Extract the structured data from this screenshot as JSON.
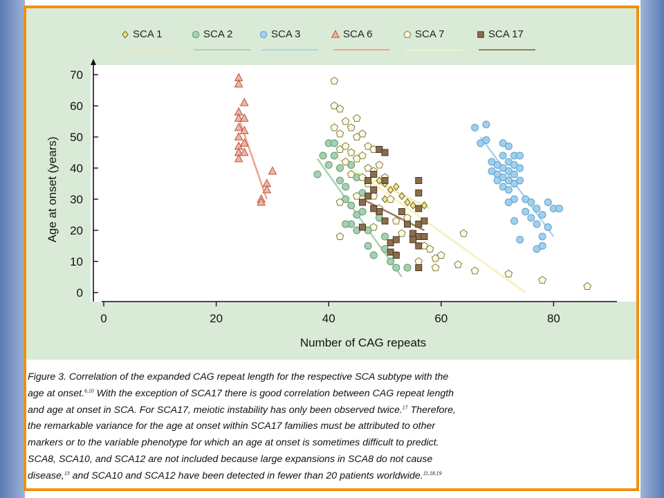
{
  "colors": {
    "frame": "#f0900f",
    "panel": "#d9ebd7",
    "plot_area": "#ffffff",
    "side_bands": "#6f8fc4"
  },
  "chart_data": {
    "type": "scatter",
    "title": "",
    "xlabel": "Number of CAG repeats",
    "ylabel": "Age at onset (years)",
    "xlim": [
      0,
      92
    ],
    "ylim": [
      0,
      75
    ],
    "xticks": [
      "0",
      "20",
      "40",
      "60",
      "80"
    ],
    "xtick_values": [
      0,
      20,
      40,
      60,
      80
    ],
    "yticks": [
      "0",
      "10",
      "20",
      "30",
      "40",
      "50",
      "60",
      "70"
    ],
    "ytick_values": [
      0,
      10,
      20,
      30,
      40,
      50,
      60,
      70
    ],
    "grid": false,
    "legend_position": "top",
    "series": [
      {
        "name": "SCA 1",
        "marker": "diamond",
        "fill": "#f2e58a",
        "stroke": "#6d5e1c",
        "line_color": "#f3eaa0",
        "trend": [
          [
            48,
            36
          ],
          [
            58,
            27
          ]
        ],
        "points": [
          [
            49,
            36
          ],
          [
            50,
            35
          ],
          [
            51,
            33
          ],
          [
            52,
            34
          ],
          [
            53,
            31
          ],
          [
            55,
            28
          ],
          [
            57,
            28
          ],
          [
            48,
            33
          ],
          [
            50,
            30
          ],
          [
            54,
            29
          ]
        ]
      },
      {
        "name": "SCA 2",
        "marker": "circle",
        "fill": "#a6d1b0",
        "stroke": "#5f9a72",
        "line_color": "#a8d4b2",
        "trend": [
          [
            38,
            43
          ],
          [
            53,
            5
          ]
        ],
        "points": [
          [
            38,
            38
          ],
          [
            39,
            44
          ],
          [
            40,
            48
          ],
          [
            40,
            41
          ],
          [
            41,
            48
          ],
          [
            41,
            44
          ],
          [
            42,
            40
          ],
          [
            42,
            36
          ],
          [
            43,
            34
          ],
          [
            43,
            30
          ],
          [
            44,
            28
          ],
          [
            44,
            22
          ],
          [
            45,
            25
          ],
          [
            45,
            20
          ],
          [
            46,
            32
          ],
          [
            46,
            26
          ],
          [
            47,
            20
          ],
          [
            47,
            15
          ],
          [
            48,
            12
          ],
          [
            49,
            24
          ],
          [
            50,
            18
          ],
          [
            50,
            14
          ],
          [
            51,
            10
          ],
          [
            52,
            8
          ],
          [
            54,
            8
          ],
          [
            43,
            22
          ],
          [
            44,
            41
          ],
          [
            45,
            37
          ]
        ]
      },
      {
        "name": "SCA 3",
        "marker": "circle",
        "fill": "#9fd0ee",
        "stroke": "#5fa0c8",
        "line_color": "#a8d4ee",
        "trend": [
          [
            67,
            50
          ],
          [
            80,
            18
          ]
        ],
        "points": [
          [
            66,
            53
          ],
          [
            67,
            48
          ],
          [
            68,
            54
          ],
          [
            68,
            49
          ],
          [
            69,
            42
          ],
          [
            69,
            39
          ],
          [
            70,
            41
          ],
          [
            70,
            38
          ],
          [
            70,
            36
          ],
          [
            71,
            48
          ],
          [
            71,
            44
          ],
          [
            71,
            40
          ],
          [
            71,
            37
          ],
          [
            71,
            34
          ],
          [
            72,
            47
          ],
          [
            72,
            42
          ],
          [
            72,
            39
          ],
          [
            72,
            36
          ],
          [
            72,
            33
          ],
          [
            73,
            44
          ],
          [
            73,
            41
          ],
          [
            73,
            38
          ],
          [
            73,
            35
          ],
          [
            73,
            30
          ],
          [
            74,
            44
          ],
          [
            74,
            40
          ],
          [
            74,
            36
          ],
          [
            75,
            30
          ],
          [
            75,
            26
          ],
          [
            76,
            29
          ],
          [
            76,
            24
          ],
          [
            77,
            27
          ],
          [
            77,
            22
          ],
          [
            78,
            25
          ],
          [
            78,
            18
          ],
          [
            79,
            29
          ],
          [
            79,
            21
          ],
          [
            80,
            27
          ],
          [
            81,
            27
          ],
          [
            72,
            29
          ],
          [
            73,
            23
          ],
          [
            77,
            14
          ],
          [
            78,
            15
          ],
          [
            74,
            17
          ]
        ]
      },
      {
        "name": "SCA 6",
        "marker": "triangle",
        "fill": "#f2b4a4",
        "stroke": "#b4533a",
        "line_color": "#efa28f",
        "trend": [
          [
            24,
            56
          ],
          [
            29,
            30
          ]
        ],
        "points": [
          [
            24,
            69
          ],
          [
            24,
            67
          ],
          [
            24,
            58
          ],
          [
            24,
            56
          ],
          [
            24,
            53
          ],
          [
            24,
            50
          ],
          [
            24,
            47
          ],
          [
            24,
            45
          ],
          [
            24,
            43
          ],
          [
            25,
            61
          ],
          [
            25,
            56
          ],
          [
            25,
            48
          ],
          [
            25,
            45
          ],
          [
            25,
            52
          ],
          [
            28,
            30
          ],
          [
            28,
            29
          ],
          [
            29,
            35
          ],
          [
            29,
            33
          ],
          [
            30,
            39
          ]
        ]
      },
      {
        "name": "SCA 7",
        "marker": "pentagon",
        "fill": "#fbfbe6",
        "stroke": "#7f7a3a",
        "line_color": "#f6f0b8",
        "trend": [
          [
            41,
            44
          ],
          [
            75,
            0
          ]
        ],
        "points": [
          [
            41,
            68
          ],
          [
            41,
            60
          ],
          [
            41,
            53
          ],
          [
            42,
            59
          ],
          [
            42,
            51
          ],
          [
            42,
            46
          ],
          [
            43,
            55
          ],
          [
            43,
            47
          ],
          [
            43,
            42
          ],
          [
            44,
            53
          ],
          [
            44,
            45
          ],
          [
            44,
            38
          ],
          [
            45,
            56
          ],
          [
            45,
            50
          ],
          [
            45,
            43
          ],
          [
            46,
            51
          ],
          [
            46,
            44
          ],
          [
            46,
            37
          ],
          [
            47,
            47
          ],
          [
            47,
            40
          ],
          [
            47,
            35
          ],
          [
            48,
            46
          ],
          [
            48,
            39
          ],
          [
            48,
            31
          ],
          [
            49,
            41
          ],
          [
            49,
            27
          ],
          [
            50,
            37
          ],
          [
            51,
            30
          ],
          [
            52,
            23
          ],
          [
            53,
            19
          ],
          [
            54,
            24
          ],
          [
            55,
            18
          ],
          [
            56,
            10
          ],
          [
            57,
            15
          ],
          [
            58,
            14
          ],
          [
            59,
            8
          ],
          [
            59,
            11
          ],
          [
            60,
            12
          ],
          [
            63,
            9
          ],
          [
            64,
            19
          ],
          [
            66,
            7
          ],
          [
            72,
            6
          ],
          [
            78,
            4
          ],
          [
            86,
            2
          ],
          [
            42,
            29
          ],
          [
            42,
            18
          ],
          [
            45,
            31
          ],
          [
            48,
            21
          ],
          [
            52,
            12
          ]
        ]
      },
      {
        "name": "SCA 17",
        "marker": "square",
        "fill": "#8a6d4c",
        "stroke": "#4a3520",
        "line_color": "#9c7a5a",
        "trend": [
          [
            46,
            30
          ],
          [
            57,
            20
          ]
        ],
        "points": [
          [
            46,
            29
          ],
          [
            46,
            21
          ],
          [
            47,
            36
          ],
          [
            47,
            31
          ],
          [
            48,
            38
          ],
          [
            48,
            33
          ],
          [
            49,
            46
          ],
          [
            49,
            26
          ],
          [
            50,
            36
          ],
          [
            50,
            23
          ],
          [
            51,
            16
          ],
          [
            51,
            13
          ],
          [
            52,
            12
          ],
          [
            53,
            26
          ],
          [
            54,
            22
          ],
          [
            55,
            19
          ],
          [
            56,
            36
          ],
          [
            56,
            32
          ],
          [
            56,
            27
          ],
          [
            56,
            22
          ],
          [
            56,
            18
          ],
          [
            56,
            15
          ],
          [
            56,
            8
          ],
          [
            57,
            23
          ],
          [
            57,
            18
          ],
          [
            50,
            45
          ],
          [
            48,
            27
          ],
          [
            52,
            17
          ],
          [
            55,
            17
          ]
        ]
      }
    ]
  },
  "caption": {
    "line1": "Figure 3. Correlation of the expanded CAG repeat length for the respective SCA subtype with the",
    "line2a": "age at onset.",
    "line2_ref": "6,10",
    "line2b": " With the exception of SCA17 there is good correlation between CAG repeat length",
    "line3a": "and age at onset in SCA. For SCA17, meiotic instability has only been observed twice.",
    "line3_ref": "17",
    "line3b": " Therefore,",
    "line4": "the remarkable variance for the age at onset within SCA17 families must be attributed to other",
    "line5": "markers or to the variable phenotype for which an age at onset is sometimes difficult to predict.",
    "line6": "SCA8, SCA10, and SCA12 are not included because large expansions in SCA8 do not cause",
    "line7a": "disease,",
    "line7_ref1": "13",
    "line7b": " and SCA10 and SCA12 have been detected in fewer than 20 patients worldwide.",
    "line7_ref2": "11,18,19"
  }
}
